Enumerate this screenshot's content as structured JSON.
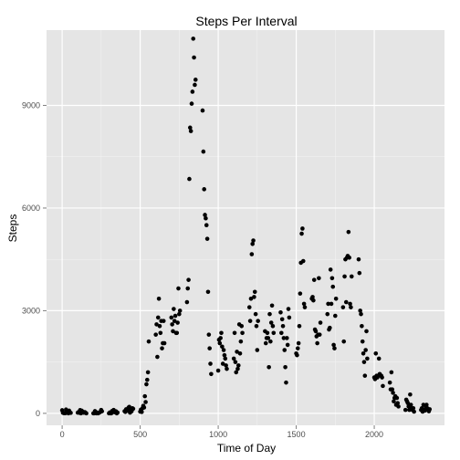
{
  "chart_data": {
    "type": "scatter",
    "title": "Steps Per Interval",
    "xlabel": "Time of Day",
    "ylabel": "Steps",
    "xlim": [
      -100,
      2450
    ],
    "ylim": [
      -350,
      11200
    ],
    "x_ticks": [
      0,
      500,
      1000,
      1500,
      2000
    ],
    "y_ticks": [
      0,
      3000,
      6000,
      9000
    ],
    "x_tick_labels": [
      "0",
      "500",
      "1000",
      "1500",
      "2000"
    ],
    "y_tick_labels": [
      "0",
      "3000",
      "6000",
      "9000"
    ],
    "grid": true,
    "colors": {
      "panel": "#e5e5e5",
      "grid": "#ffffff",
      "grid_minor": "#f2f2f2",
      "points": "#000000"
    },
    "points": [
      [
        0,
        91
      ],
      [
        5,
        18
      ],
      [
        10,
        7
      ],
      [
        15,
        8
      ],
      [
        20,
        4
      ],
      [
        25,
        111
      ],
      [
        30,
        28
      ],
      [
        35,
        46
      ],
      [
        40,
        0
      ],
      [
        45,
        78
      ],
      [
        50,
        20
      ],
      [
        55,
        14
      ],
      [
        100,
        21
      ],
      [
        105,
        35
      ],
      [
        110,
        18
      ],
      [
        115,
        95
      ],
      [
        120,
        0
      ],
      [
        125,
        80
      ],
      [
        130,
        55
      ],
      [
        135,
        21
      ],
      [
        140,
        22
      ],
      [
        145,
        36
      ],
      [
        150,
        18
      ],
      [
        155,
        0
      ],
      [
        200,
        0
      ],
      [
        205,
        0
      ],
      [
        210,
        64
      ],
      [
        215,
        48
      ],
      [
        220,
        0
      ],
      [
        225,
        16
      ],
      [
        230,
        0
      ],
      [
        235,
        14
      ],
      [
        240,
        26
      ],
      [
        245,
        42
      ],
      [
        250,
        100
      ],
      [
        255,
        60
      ],
      [
        300,
        0
      ],
      [
        305,
        25
      ],
      [
        310,
        0
      ],
      [
        315,
        0
      ],
      [
        320,
        68
      ],
      [
        325,
        40
      ],
      [
        330,
        100
      ],
      [
        335,
        33
      ],
      [
        340,
        46
      ],
      [
        345,
        60
      ],
      [
        350,
        0
      ],
      [
        355,
        22
      ],
      [
        400,
        63
      ],
      [
        405,
        42
      ],
      [
        410,
        120
      ],
      [
        415,
        81
      ],
      [
        420,
        77
      ],
      [
        425,
        165
      ],
      [
        430,
        190
      ],
      [
        435,
        20
      ],
      [
        440,
        108
      ],
      [
        445,
        60
      ],
      [
        450,
        148
      ],
      [
        455,
        135
      ],
      [
        500,
        50
      ],
      [
        505,
        110
      ],
      [
        510,
        40
      ],
      [
        515,
        150
      ],
      [
        520,
        220
      ],
      [
        525,
        170
      ],
      [
        530,
        500
      ],
      [
        535,
        330
      ],
      [
        540,
        850
      ],
      [
        545,
        980
      ],
      [
        550,
        1200
      ],
      [
        555,
        2100
      ],
      [
        600,
        2300
      ],
      [
        605,
        2600
      ],
      [
        610,
        1650
      ],
      [
        615,
        2800
      ],
      [
        620,
        3350
      ],
      [
        625,
        2550
      ],
      [
        630,
        2350
      ],
      [
        635,
        2700
      ],
      [
        640,
        1900
      ],
      [
        645,
        2050
      ],
      [
        650,
        2700
      ],
      [
        655,
        2050
      ],
      [
        700,
        2800
      ],
      [
        705,
        2600
      ],
      [
        710,
        2400
      ],
      [
        715,
        3050
      ],
      [
        720,
        2700
      ],
      [
        725,
        2850
      ],
      [
        730,
        2350
      ],
      [
        735,
        2350
      ],
      [
        740,
        2650
      ],
      [
        745,
        3650
      ],
      [
        750,
        2900
      ],
      [
        755,
        3000
      ],
      [
        800,
        3250
      ],
      [
        805,
        3650
      ],
      [
        810,
        3900
      ],
      [
        815,
        6850
      ],
      [
        820,
        8350
      ],
      [
        825,
        8250
      ],
      [
        830,
        9050
      ],
      [
        835,
        9400
      ],
      [
        840,
        10950
      ],
      [
        845,
        10400
      ],
      [
        850,
        9600
      ],
      [
        855,
        9750
      ],
      [
        900,
        8850
      ],
      [
        905,
        7650
      ],
      [
        910,
        6550
      ],
      [
        915,
        5800
      ],
      [
        920,
        5700
      ],
      [
        925,
        5500
      ],
      [
        930,
        5100
      ],
      [
        935,
        3550
      ],
      [
        940,
        2300
      ],
      [
        945,
        1900
      ],
      [
        950,
        1450
      ],
      [
        955,
        1150
      ],
      [
        1000,
        1250
      ],
      [
        1005,
        2150
      ],
      [
        1010,
        2050
      ],
      [
        1015,
        2200
      ],
      [
        1020,
        2350
      ],
      [
        1025,
        1950
      ],
      [
        1030,
        1450
      ],
      [
        1035,
        1850
      ],
      [
        1040,
        1700
      ],
      [
        1045,
        1600
      ],
      [
        1050,
        1400
      ],
      [
        1055,
        1300
      ],
      [
        1100,
        1600
      ],
      [
        1105,
        2350
      ],
      [
        1110,
        1500
      ],
      [
        1115,
        1200
      ],
      [
        1120,
        1800
      ],
      [
        1125,
        1300
      ],
      [
        1130,
        1400
      ],
      [
        1135,
        2600
      ],
      [
        1140,
        1750
      ],
      [
        1145,
        2100
      ],
      [
        1150,
        2550
      ],
      [
        1155,
        2350
      ],
      [
        1200,
        3100
      ],
      [
        1205,
        2700
      ],
      [
        1210,
        3350
      ],
      [
        1215,
        4650
      ],
      [
        1220,
        4950
      ],
      [
        1225,
        5050
      ],
      [
        1230,
        3400
      ],
      [
        1235,
        3550
      ],
      [
        1240,
        2900
      ],
      [
        1245,
        2550
      ],
      [
        1250,
        1850
      ],
      [
        1255,
        2700
      ],
      [
        1300,
        2400
      ],
      [
        1305,
        2050
      ],
      [
        1310,
        2200
      ],
      [
        1315,
        2350
      ],
      [
        1320,
        2200
      ],
      [
        1325,
        1350
      ],
      [
        1330,
        2900
      ],
      [
        1335,
        2100
      ],
      [
        1340,
        2650
      ],
      [
        1345,
        3150
      ],
      [
        1350,
        2550
      ],
      [
        1355,
        2350
      ],
      [
        1400,
        2950
      ],
      [
        1405,
        2350
      ],
      [
        1410,
        2750
      ],
      [
        1415,
        2550
      ],
      [
        1420,
        2200
      ],
      [
        1425,
        1850
      ],
      [
        1430,
        1350
      ],
      [
        1435,
        900
      ],
      [
        1440,
        2200
      ],
      [
        1445,
        2000
      ],
      [
        1450,
        3050
      ],
      [
        1455,
        2800
      ],
      [
        1500,
        1750
      ],
      [
        1505,
        1700
      ],
      [
        1510,
        1900
      ],
      [
        1515,
        2050
      ],
      [
        1520,
        2550
      ],
      [
        1525,
        3500
      ],
      [
        1530,
        4400
      ],
      [
        1535,
        5250
      ],
      [
        1540,
        5400
      ],
      [
        1545,
        4450
      ],
      [
        1550,
        3200
      ],
      [
        1555,
        3100
      ],
      [
        1600,
        3350
      ],
      [
        1605,
        3400
      ],
      [
        1610,
        3300
      ],
      [
        1615,
        3900
      ],
      [
        1620,
        2450
      ],
      [
        1625,
        2400
      ],
      [
        1630,
        2250
      ],
      [
        1635,
        2050
      ],
      [
        1640,
        2300
      ],
      [
        1645,
        3950
      ],
      [
        1650,
        2300
      ],
      [
        1655,
        2650
      ],
      [
        1700,
        2900
      ],
      [
        1705,
        3200
      ],
      [
        1710,
        2450
      ],
      [
        1715,
        2500
      ],
      [
        1720,
        4200
      ],
      [
        1725,
        3200
      ],
      [
        1730,
        3950
      ],
      [
        1735,
        3700
      ],
      [
        1740,
        2000
      ],
      [
        1745,
        1900
      ],
      [
        1750,
        2850
      ],
      [
        1755,
        3350
      ],
      [
        1800,
        3100
      ],
      [
        1805,
        2100
      ],
      [
        1810,
        4000
      ],
      [
        1815,
        4500
      ],
      [
        1820,
        3250
      ],
      [
        1825,
        4550
      ],
      [
        1830,
        4600
      ],
      [
        1835,
        5300
      ],
      [
        1840,
        4550
      ],
      [
        1845,
        3200
      ],
      [
        1850,
        3100
      ],
      [
        1855,
        4000
      ],
      [
        1900,
        4500
      ],
      [
        1905,
        4100
      ],
      [
        1910,
        3000
      ],
      [
        1915,
        2900
      ],
      [
        1920,
        2550
      ],
      [
        1925,
        2100
      ],
      [
        1930,
        1750
      ],
      [
        1935,
        1500
      ],
      [
        1940,
        1100
      ],
      [
        1945,
        1850
      ],
      [
        1950,
        2400
      ],
      [
        1955,
        1600
      ],
      [
        2000,
        1050
      ],
      [
        2005,
        1000
      ],
      [
        2010,
        1750
      ],
      [
        2015,
        1100
      ],
      [
        2020,
        1050
      ],
      [
        2025,
        1100
      ],
      [
        2030,
        1600
      ],
      [
        2035,
        1150
      ],
      [
        2040,
        1100
      ],
      [
        2045,
        1100
      ],
      [
        2050,
        1050
      ],
      [
        2055,
        800
      ],
      [
        2100,
        900
      ],
      [
        2105,
        700
      ],
      [
        2110,
        1200
      ],
      [
        2115,
        700
      ],
      [
        2120,
        600
      ],
      [
        2125,
        350
      ],
      [
        2130,
        450
      ],
      [
        2135,
        500
      ],
      [
        2140,
        250
      ],
      [
        2145,
        450
      ],
      [
        2150,
        300
      ],
      [
        2155,
        200
      ],
      [
        2200,
        100
      ],
      [
        2205,
        400
      ],
      [
        2210,
        350
      ],
      [
        2215,
        300
      ],
      [
        2220,
        200
      ],
      [
        2225,
        100
      ],
      [
        2230,
        550
      ],
      [
        2235,
        250
      ],
      [
        2240,
        150
      ],
      [
        2245,
        100
      ],
      [
        2250,
        150
      ],
      [
        2255,
        50
      ],
      [
        2300,
        100
      ],
      [
        2305,
        150
      ],
      [
        2310,
        50
      ],
      [
        2315,
        250
      ],
      [
        2320,
        100
      ],
      [
        2325,
        80
      ],
      [
        2330,
        200
      ],
      [
        2335,
        250
      ],
      [
        2340,
        150
      ],
      [
        2345,
        100
      ],
      [
        2350,
        60
      ],
      [
        2355,
        120
      ]
    ]
  }
}
